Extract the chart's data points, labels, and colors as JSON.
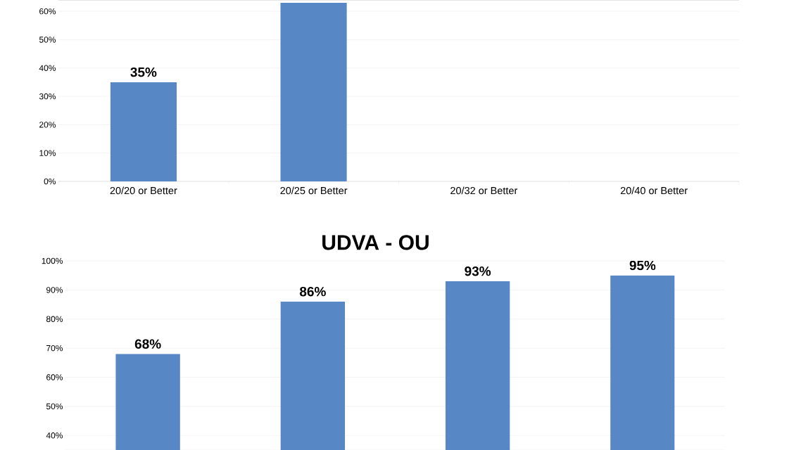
{
  "chart_data": [
    {
      "type": "bar",
      "categories": [
        "20/20 or Better",
        "20/25 or Better",
        "20/32 or Better",
        "20/40 or Better"
      ],
      "values": [
        35,
        63,
        null,
        null
      ],
      "value_labels": [
        "35%",
        null,
        null,
        null
      ],
      "color": "#5887c5",
      "ylim": [
        0,
        64
      ],
      "yticks": [
        {
          "value": 0,
          "label": "0%"
        },
        {
          "value": 10,
          "label": "10%"
        },
        {
          "value": 20,
          "label": "20%"
        },
        {
          "value": 30,
          "label": "30%"
        },
        {
          "value": 40,
          "label": "40%"
        },
        {
          "value": 50,
          "label": "50%"
        },
        {
          "value": 60,
          "label": "60%"
        }
      ],
      "grid": "y"
    },
    {
      "type": "bar",
      "title": "UDVA - OU",
      "categories": [
        null,
        null,
        null,
        null
      ],
      "values": [
        68,
        86,
        93,
        95
      ],
      "value_labels": [
        "68%",
        "86%",
        "93%",
        "95%"
      ],
      "color": "#5887c5",
      "ylim": [
        35,
        100
      ],
      "yticks": [
        {
          "value": 40,
          "label": "40%"
        },
        {
          "value": 50,
          "label": "50%"
        },
        {
          "value": 60,
          "label": "60%"
        },
        {
          "value": 70,
          "label": "70%"
        },
        {
          "value": 80,
          "label": "80%"
        },
        {
          "value": 90,
          "label": "90%"
        },
        {
          "value": 100,
          "label": "100%"
        }
      ],
      "grid": "y"
    }
  ]
}
